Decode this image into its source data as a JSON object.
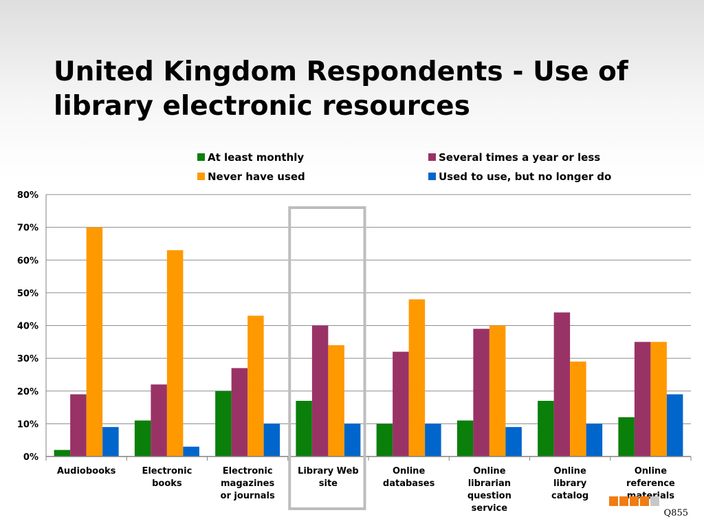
{
  "slide": {
    "title": "United Kingdom Respondents - Use of library electronic resources",
    "question_code": "Q855",
    "footer_square_colors": [
      "#f07c12",
      "#f07c12",
      "#f07c12",
      "#f07c12",
      "#c8c8c8"
    ]
  },
  "chart_data": {
    "type": "bar",
    "title": "",
    "xlabel": "",
    "ylabel": "",
    "ylim": [
      0,
      80
    ],
    "yticks": [
      "0%",
      "10%",
      "20%",
      "30%",
      "40%",
      "50%",
      "60%",
      "70%",
      "80%"
    ],
    "grid": true,
    "legend_position": "top",
    "categories": [
      [
        "Audiobooks"
      ],
      [
        "Electronic",
        "books"
      ],
      [
        "Electronic",
        "magazines",
        "or journals"
      ],
      [
        "Library Web",
        "site"
      ],
      [
        "Online",
        "databases"
      ],
      [
        "Online",
        "librarian",
        "question",
        "service"
      ],
      [
        "Online",
        "library",
        "catalog"
      ],
      [
        "Online",
        "reference",
        "materials"
      ]
    ],
    "highlighted_category": "Library Web site",
    "series": [
      {
        "name": "At least monthly",
        "color": "#0a7f0a",
        "values": [
          2,
          11,
          20,
          17,
          10,
          11,
          17,
          12
        ]
      },
      {
        "name": "Several times a year or less",
        "color": "#993366",
        "values": [
          19,
          22,
          27,
          40,
          32,
          39,
          44,
          35
        ]
      },
      {
        "name": "Never have used",
        "color": "#ff9900",
        "values": [
          70,
          63,
          43,
          34,
          48,
          40,
          29,
          35
        ]
      },
      {
        "name": "Used to use, but no longer do",
        "color": "#0066cc",
        "values": [
          9,
          3,
          10,
          10,
          10,
          9,
          10,
          19
        ]
      }
    ]
  }
}
